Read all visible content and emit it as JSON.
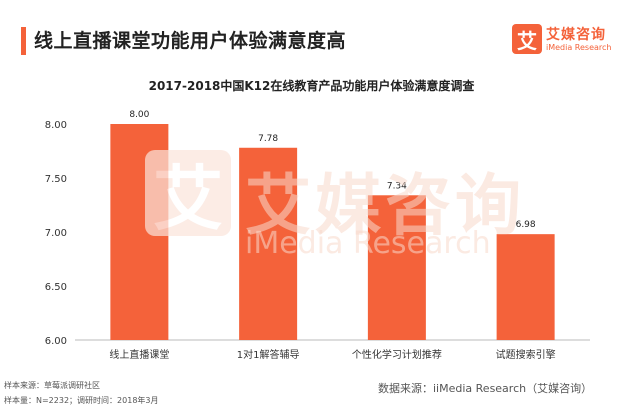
{
  "header": {
    "title": "线上直播课堂功能用户体验满意度高"
  },
  "logo": {
    "mark": "艾",
    "name": "艾媒咨询",
    "sub": "iMedia Research"
  },
  "watermark": {
    "mark": "艾",
    "name": "艾媒咨询",
    "sub": "iMedia Research"
  },
  "colors": {
    "accent": "#f4623a",
    "bar": "#f4623a"
  },
  "chart_data": {
    "type": "bar",
    "title": "2017-2018中国K12在线教育产品功能用户体验满意度调查",
    "categories": [
      "线上直播课堂",
      "1对1解答辅导",
      "个性化学习计划推荐",
      "试题搜索引擎"
    ],
    "values": [
      8.0,
      7.78,
      7.34,
      6.98
    ],
    "value_labels": [
      "8.00",
      "7.78",
      "7.34",
      "6.98"
    ],
    "ylim": [
      6.0,
      8.0
    ],
    "yticks": [
      6.0,
      6.5,
      7.0,
      7.5,
      8.0
    ],
    "ytick_labels": [
      "6.00",
      "6.50",
      "7.00",
      "7.50",
      "8.00"
    ],
    "xlabel": "",
    "ylabel": "",
    "grid": false
  },
  "footer": {
    "source_sample": "样本来源：草莓派调研社区",
    "sample_size": "样本量：N=2232；调研时间：2018年3月",
    "data_source": "数据来源：iiMedia Research（艾媒咨询）"
  }
}
